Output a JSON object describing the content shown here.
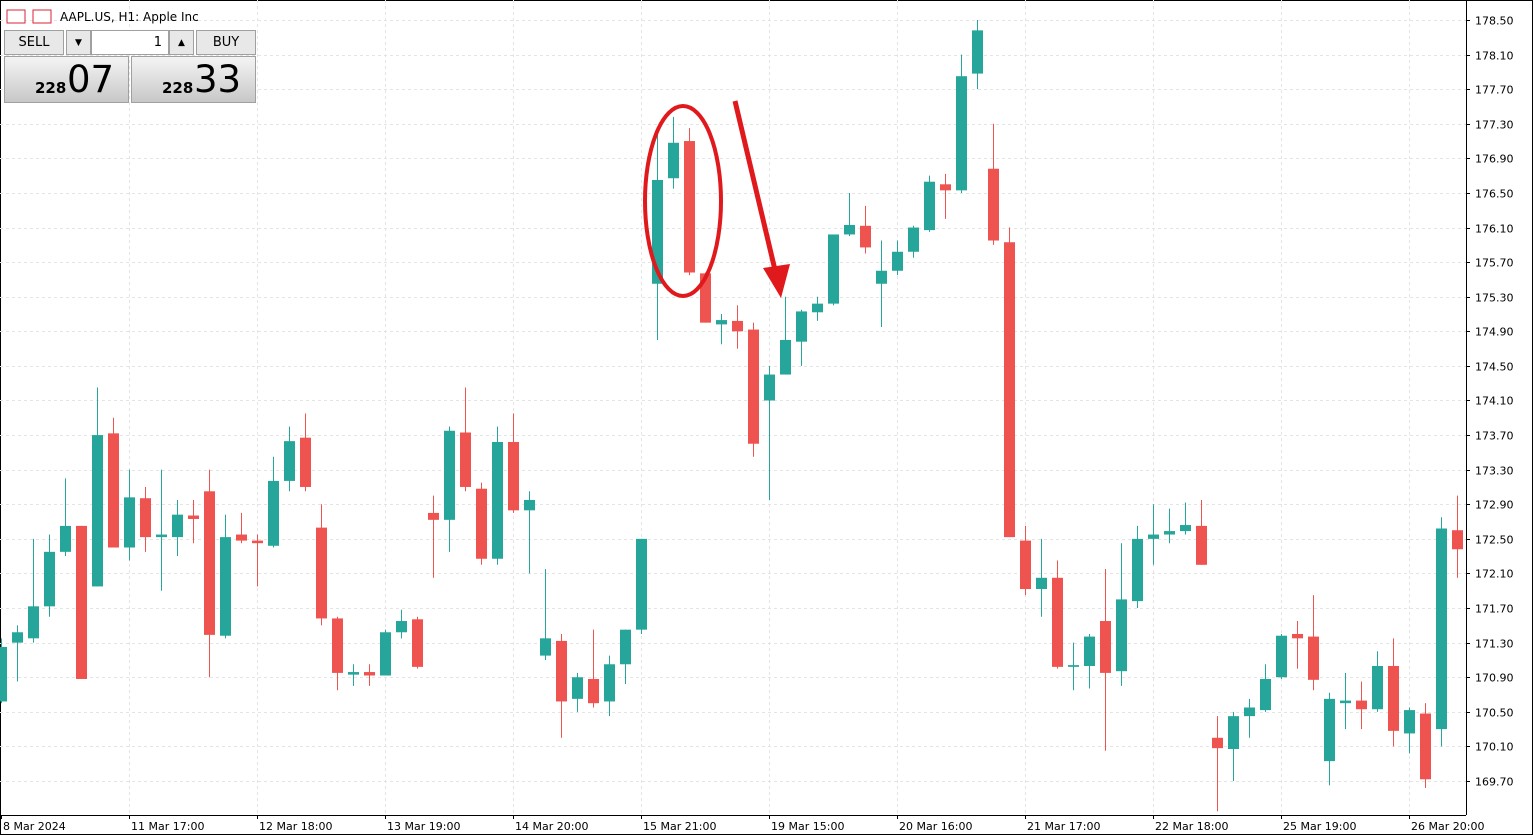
{
  "header": {
    "title": "AAPL.US, H1:  Apple Inc"
  },
  "trade_panel": {
    "sell_label": "SELL",
    "buy_label": "BUY",
    "volume": "1",
    "sell_price_small": "228",
    "sell_price_big": "07",
    "buy_price_small": "228",
    "buy_price_big": "33"
  },
  "chart_data": {
    "type": "candlestick",
    "grid": true,
    "up_color": "#26a69a",
    "down_color": "#ef5350",
    "ylim": [
      169.307,
      178.731
    ],
    "yticks": [
      {
        "value": 178.5,
        "label": "178.50"
      },
      {
        "value": 178.1,
        "label": "178.10"
      },
      {
        "value": 177.7,
        "label": "177.70"
      },
      {
        "value": 177.3,
        "label": "177.30"
      },
      {
        "value": 176.9,
        "label": "176.90"
      },
      {
        "value": 176.5,
        "label": "176.50"
      },
      {
        "value": 176.1,
        "label": "176.10"
      },
      {
        "value": 175.7,
        "label": "175.70"
      },
      {
        "value": 175.3,
        "label": "175.30"
      },
      {
        "value": 174.9,
        "label": "174.90"
      },
      {
        "value": 174.5,
        "label": "174.50"
      },
      {
        "value": 174.1,
        "label": "174.10"
      },
      {
        "value": 173.7,
        "label": "173.70"
      },
      {
        "value": 173.3,
        "label": "173.30"
      },
      {
        "value": 172.9,
        "label": "172.90"
      },
      {
        "value": 172.5,
        "label": "172.50"
      },
      {
        "value": 172.1,
        "label": "172.10"
      },
      {
        "value": 171.7,
        "label": "171.70"
      },
      {
        "value": 171.3,
        "label": "171.30"
      },
      {
        "value": 170.9,
        "label": "170.90"
      },
      {
        "value": 170.5,
        "label": "170.50"
      },
      {
        "value": 170.1,
        "label": "170.10"
      },
      {
        "value": 169.7,
        "label": "169.70"
      }
    ],
    "categories": [
      "8 Mar 2024",
      null,
      null,
      null,
      null,
      null,
      null,
      null,
      "11 Mar 17:00",
      null,
      null,
      null,
      null,
      null,
      null,
      null,
      "12 Mar 18:00",
      null,
      null,
      null,
      null,
      null,
      null,
      null,
      "13 Mar 19:00",
      null,
      null,
      null,
      null,
      null,
      null,
      null,
      "14 Mar 20:00",
      null,
      null,
      null,
      null,
      null,
      null,
      null,
      "15 Mar 21:00",
      null,
      null,
      null,
      null,
      null,
      null,
      null,
      "19 Mar 15:00",
      null,
      null,
      null,
      null,
      null,
      null,
      null,
      "20 Mar 16:00",
      null,
      null,
      null,
      null,
      null,
      null,
      null,
      "21 Mar 17:00",
      null,
      null,
      null,
      null,
      null,
      null,
      null,
      "22 Mar 18:00",
      null,
      null,
      null,
      null,
      null,
      null,
      null,
      "25 Mar 19:00",
      null,
      null,
      null,
      null,
      null,
      null,
      null,
      "26 Mar 20:00",
      null,
      null,
      null
    ],
    "open": [
      170.62,
      171.3,
      171.35,
      171.72,
      172.35,
      172.65,
      171.95,
      173.72,
      172.4,
      172.97,
      172.52,
      172.52,
      172.77,
      173.05,
      171.38,
      172.55,
      172.48,
      172.42,
      173.17,
      173.67,
      172.63,
      171.58,
      170.93,
      170.96,
      170.92,
      171.42,
      171.57,
      172.8,
      172.72,
      173.73,
      173.08,
      172.27,
      173.62,
      172.83,
      171.15,
      171.32,
      170.65,
      170.88,
      170.62,
      171.05,
      171.45,
      175.45,
      176.67,
      177.1,
      175.57,
      174.98,
      175.02,
      174.92,
      174.1,
      174.4,
      174.78,
      175.12,
      175.22,
      176.02,
      176.12,
      175.45,
      175.6,
      175.82,
      176.07,
      176.6,
      176.53,
      177.88,
      176.78,
      175.93,
      172.48,
      171.92,
      172.05,
      171.02,
      171.03,
      171.55,
      170.97,
      171.78,
      172.5,
      172.55,
      172.59,
      172.65,
      170.2,
      170.07,
      170.45,
      170.52,
      170.9,
      171.4,
      171.37,
      169.93,
      170.6,
      170.63,
      170.53,
      171.03,
      170.25,
      170.48,
      170.3,
      172.6
    ],
    "high": [
      171.35,
      171.5,
      172.5,
      172.55,
      173.2,
      172.65,
      174.25,
      173.9,
      173.3,
      173.1,
      173.3,
      172.95,
      172.95,
      173.3,
      172.78,
      172.8,
      172.55,
      173.45,
      173.8,
      173.95,
      172.9,
      171.6,
      171.05,
      171.05,
      171.45,
      171.68,
      171.6,
      173.0,
      173.8,
      174.25,
      173.15,
      173.8,
      173.95,
      173.05,
      172.15,
      171.4,
      170.95,
      171.45,
      171.15,
      171.45,
      172.5,
      177.2,
      177.38,
      177.25,
      175.58,
      175.1,
      175.2,
      175.0,
      174.5,
      175.3,
      175.15,
      175.3,
      176.02,
      176.5,
      176.35,
      175.95,
      175.95,
      176.12,
      176.7,
      176.72,
      178.1,
      178.5,
      177.3,
      176.1,
      172.65,
      172.5,
      172.25,
      171.3,
      171.4,
      172.15,
      172.45,
      172.65,
      172.9,
      172.85,
      172.92,
      172.95,
      170.45,
      170.5,
      170.65,
      171.05,
      171.4,
      171.55,
      171.85,
      170.72,
      170.95,
      170.85,
      171.2,
      171.35,
      170.55,
      170.6,
      172.75,
      173.0
    ],
    "low": [
      170.6,
      170.85,
      171.3,
      171.6,
      172.3,
      170.88,
      171.95,
      172.4,
      172.25,
      172.35,
      171.9,
      172.3,
      172.45,
      170.9,
      171.35,
      172.45,
      171.95,
      172.4,
      173.05,
      173.05,
      171.5,
      170.75,
      170.8,
      170.8,
      170.92,
      171.35,
      171.0,
      172.05,
      172.35,
      173.05,
      172.2,
      172.2,
      172.8,
      172.1,
      171.1,
      170.2,
      170.5,
      170.55,
      170.45,
      170.82,
      171.4,
      174.8,
      176.55,
      175.55,
      175.0,
      174.75,
      174.7,
      173.45,
      172.95,
      174.4,
      174.5,
      175.02,
      175.2,
      176.0,
      175.8,
      174.95,
      175.55,
      175.75,
      176.05,
      176.2,
      176.5,
      177.7,
      175.9,
      172.52,
      171.85,
      171.6,
      171.0,
      170.75,
      170.77,
      170.05,
      170.8,
      171.7,
      172.2,
      172.45,
      172.55,
      172.2,
      169.35,
      169.7,
      170.2,
      170.5,
      170.88,
      171.0,
      170.75,
      169.65,
      170.3,
      170.3,
      170.5,
      170.1,
      170.02,
      169.62,
      170.1,
      172.05
    ],
    "close": [
      171.25,
      171.42,
      171.72,
      172.35,
      172.65,
      170.88,
      173.7,
      172.4,
      172.98,
      172.52,
      172.55,
      172.78,
      172.73,
      171.39,
      172.52,
      172.48,
      172.45,
      173.17,
      173.63,
      173.1,
      171.58,
      170.95,
      170.96,
      170.92,
      171.42,
      171.55,
      171.02,
      172.72,
      173.75,
      173.1,
      172.27,
      173.62,
      172.83,
      172.95,
      171.35,
      170.62,
      170.9,
      170.6,
      171.05,
      171.45,
      172.5,
      176.65,
      177.08,
      175.58,
      175.0,
      175.03,
      174.9,
      173.6,
      174.4,
      174.8,
      175.13,
      175.22,
      176.02,
      176.13,
      175.87,
      175.6,
      175.82,
      176.1,
      176.63,
      176.53,
      177.85,
      178.38,
      175.95,
      172.52,
      171.92,
      172.05,
      171.02,
      171.04,
      171.37,
      170.95,
      171.8,
      172.5,
      172.55,
      172.59,
      172.66,
      172.2,
      170.08,
      170.45,
      170.55,
      170.88,
      171.38,
      171.35,
      170.87,
      170.65,
      170.63,
      170.53,
      171.03,
      170.28,
      170.52,
      169.72,
      172.62,
      172.38
    ]
  }
}
